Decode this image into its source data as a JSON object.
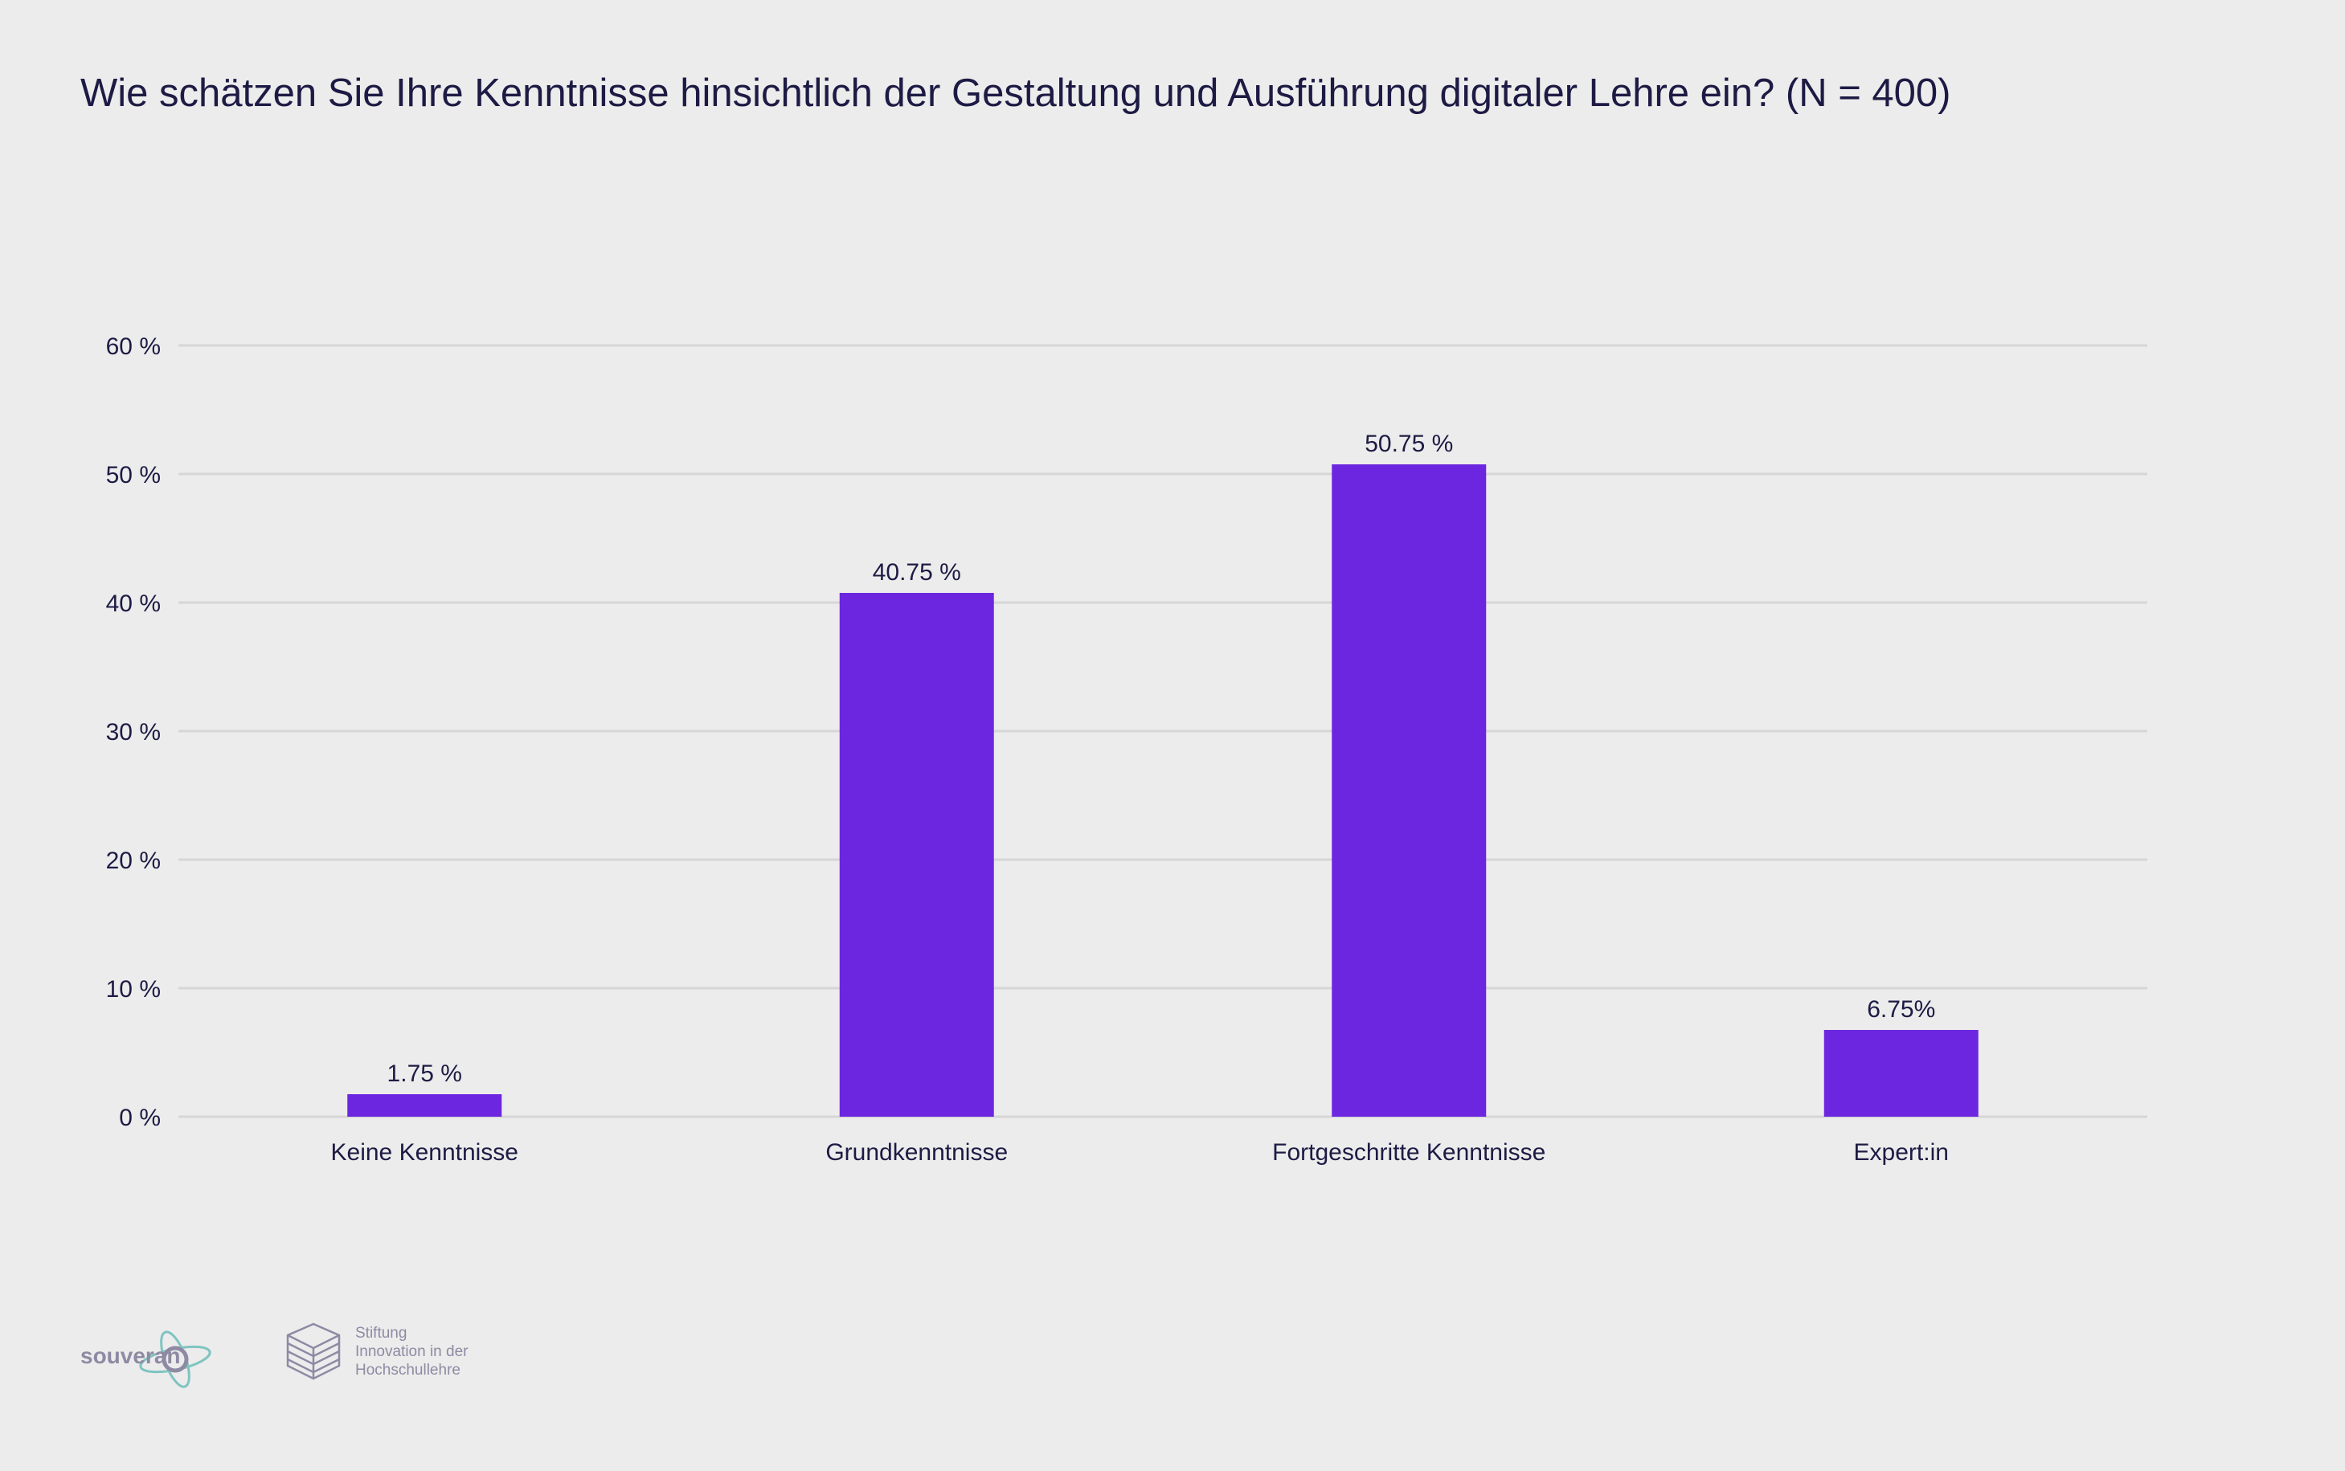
{
  "chart_data": {
    "type": "bar",
    "title": "Wie schätzen Sie Ihre Kenntnisse hinsichtlich der Gestaltung und Ausführung digitaler Lehre ein? (N = 400)",
    "categories": [
      "Keine Kenntnisse",
      "Grundkenntnisse",
      "Fortgeschritte Kenntnisse",
      "Expert:in"
    ],
    "values": [
      1.75,
      40.75,
      50.75,
      6.75
    ],
    "data_labels": [
      "1.75 %",
      "40.75 %",
      "50.75 %",
      "6.75%"
    ],
    "ylim": [
      0,
      60
    ],
    "yticks": [
      0,
      10,
      20,
      30,
      40,
      50,
      60
    ],
    "ytick_labels": [
      "0 %",
      "10 %",
      "20 %",
      "30 %",
      "40 %",
      "50 %",
      "60 %"
    ],
    "xlabel": "",
    "ylabel": "",
    "grid": true,
    "bar_color": "#6c26df",
    "grid_color": "#d6d6d6",
    "text_color": "#1d1b44",
    "background": "#ececec"
  },
  "logos": {
    "souveran": "souveran",
    "stiftung": [
      "Stiftung",
      "Innovation in der",
      "Hochschullehre"
    ]
  }
}
